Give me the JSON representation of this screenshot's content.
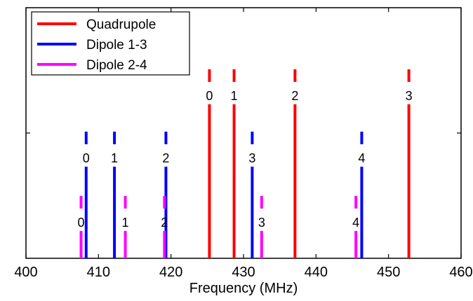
{
  "chart_data": {
    "type": "bar",
    "xlabel": "Frequency (MHz)",
    "ylabel": "",
    "title": "",
    "xlim": [
      400,
      460
    ],
    "xticks": [
      400,
      410,
      420,
      430,
      440,
      450,
      460
    ],
    "legend_position": "top-left",
    "grid": false,
    "series": [
      {
        "name": "Quadrupole",
        "color": "#ff0000",
        "points": [
          {
            "x": 425.3,
            "level": 1.0,
            "label": "0"
          },
          {
            "x": 428.7,
            "level": 1.0,
            "label": "1"
          },
          {
            "x": 437.1,
            "level": 1.0,
            "label": "2"
          },
          {
            "x": 452.8,
            "level": 1.0,
            "label": "3"
          }
        ]
      },
      {
        "name": "Dipole 1-3",
        "color": "#0000ff",
        "points": [
          {
            "x": 408.3,
            "level": 0.67,
            "label": "0"
          },
          {
            "x": 412.2,
            "level": 0.67,
            "label": "1"
          },
          {
            "x": 419.3,
            "level": 0.67,
            "label": "2"
          },
          {
            "x": 431.2,
            "level": 0.67,
            "label": "3"
          },
          {
            "x": 446.3,
            "level": 0.67,
            "label": "4"
          }
        ]
      },
      {
        "name": "Dipole 2-4",
        "color": "#ff00ff",
        "points": [
          {
            "x": 407.6,
            "level": 0.33,
            "label": "0"
          },
          {
            "x": 413.7,
            "level": 0.33,
            "label": "1"
          },
          {
            "x": 419.1,
            "level": 0.33,
            "label": "2"
          },
          {
            "x": 432.5,
            "level": 0.33,
            "label": "3"
          },
          {
            "x": 445.5,
            "level": 0.33,
            "label": "4"
          }
        ]
      }
    ]
  }
}
